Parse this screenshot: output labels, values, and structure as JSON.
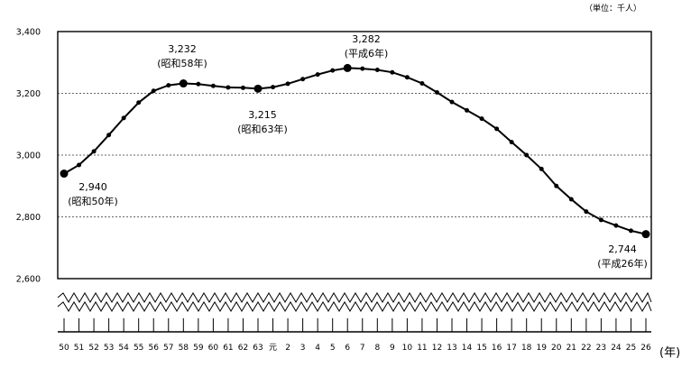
{
  "unit_label": "（単位：千人）",
  "year_label": "(年)",
  "chart_data": {
    "type": "line",
    "title": "",
    "xlabel": "(年)",
    "ylabel": "",
    "ylim": [
      2600,
      3400
    ],
    "yticks": [
      2600,
      2800,
      3000,
      3200,
      3400
    ],
    "ytick_labels": [
      "2,600",
      "2,800",
      "3,000",
      "3,200",
      "3,400"
    ],
    "grid": "horizontal dashed at 2,800 / 3,000 / 3,200",
    "broken_axis_below": true,
    "categories": [
      "50",
      "51",
      "52",
      "53",
      "54",
      "55",
      "56",
      "57",
      "58",
      "59",
      "60",
      "61",
      "62",
      "63",
      "元",
      "2",
      "3",
      "4",
      "5",
      "6",
      "7",
      "8",
      "9",
      "10",
      "11",
      "12",
      "13",
      "14",
      "15",
      "16",
      "17",
      "18",
      "19",
      "20",
      "21",
      "22",
      "23",
      "24",
      "25",
      "26"
    ],
    "series": [
      {
        "values": [
          2940,
          2968,
          3012,
          3065,
          3120,
          3170,
          3208,
          3226,
          3232,
          3230,
          3224,
          3219,
          3218,
          3215,
          3220,
          3231,
          3246,
          3261,
          3274,
          3282,
          3280,
          3276,
          3268,
          3252,
          3232,
          3203,
          3172,
          3145,
          3118,
          3085,
          3042,
          3000,
          2955,
          2900,
          2857,
          2817,
          2790,
          2772,
          2755,
          2744
        ]
      }
    ],
    "highlight_indices": [
      0,
      8,
      13,
      19,
      39
    ],
    "annotations": [
      {
        "index": 0,
        "value": "2,940",
        "note": "(昭和50年)"
      },
      {
        "index": 8,
        "value": "3,232",
        "note": "(昭和58年)"
      },
      {
        "index": 13,
        "value": "3,215",
        "note": "(昭和63年)"
      },
      {
        "index": 19,
        "value": "3,282",
        "note": "(平成6年)"
      },
      {
        "index": 39,
        "value": "2,744",
        "note": "(平成26年)"
      }
    ]
  }
}
